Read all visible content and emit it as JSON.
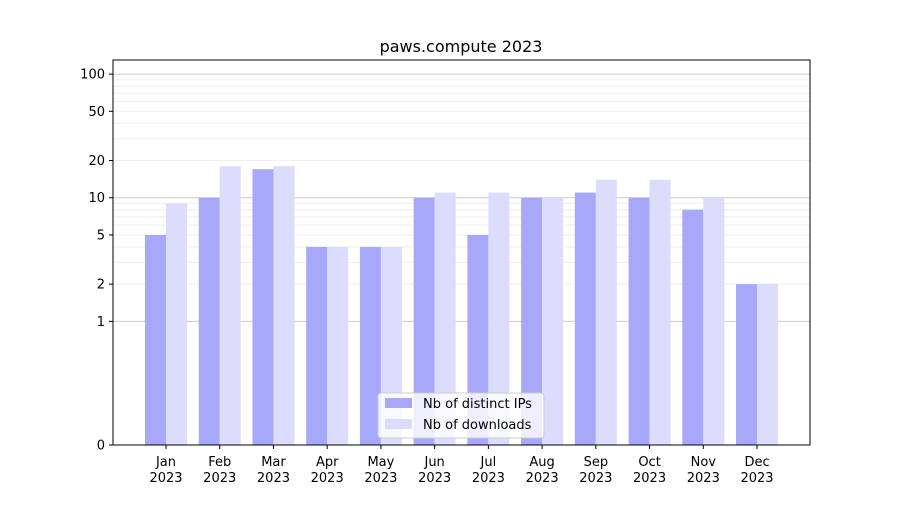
{
  "chart_data": {
    "type": "bar",
    "title": "paws.compute 2023",
    "xlabel": "",
    "ylabel": "",
    "yscale": "symlog",
    "ylim": [
      0,
      130
    ],
    "yticks": [
      0,
      1,
      2,
      5,
      10,
      20,
      50,
      100
    ],
    "categories": [
      {
        "month": "Jan",
        "year": "2023"
      },
      {
        "month": "Feb",
        "year": "2023"
      },
      {
        "month": "Mar",
        "year": "2023"
      },
      {
        "month": "Apr",
        "year": "2023"
      },
      {
        "month": "May",
        "year": "2023"
      },
      {
        "month": "Jun",
        "year": "2023"
      },
      {
        "month": "Jul",
        "year": "2023"
      },
      {
        "month": "Aug",
        "year": "2023"
      },
      {
        "month": "Sep",
        "year": "2023"
      },
      {
        "month": "Oct",
        "year": "2023"
      },
      {
        "month": "Nov",
        "year": "2023"
      },
      {
        "month": "Dec",
        "year": "2023"
      }
    ],
    "series": [
      {
        "name": "Nb of distinct IPs",
        "color": "#a8a8fa",
        "values": [
          5,
          10,
          17,
          4,
          4,
          10,
          5,
          10,
          11,
          10,
          8,
          2
        ]
      },
      {
        "name": "Nb of downloads",
        "color": "#dcdcfd",
        "values": [
          9,
          18,
          18,
          4,
          4,
          11,
          11,
          10,
          14,
          14,
          10,
          2
        ]
      }
    ],
    "grid": true,
    "legend_position": "bottom-center"
  }
}
